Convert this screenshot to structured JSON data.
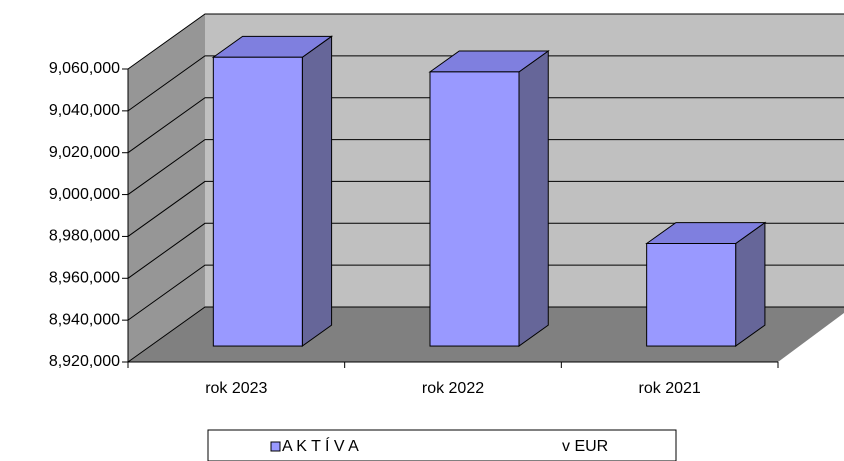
{
  "chart_data": {
    "type": "bar3d",
    "categories": [
      "rok 2023",
      "rok 2022",
      "rok 2021"
    ],
    "series": [
      {
        "name": "A K T Í V A",
        "color": "#9999ff",
        "values": [
          9058000,
          9051000,
          8969000
        ]
      }
    ],
    "annotation": "v EUR",
    "ylim": [
      8920000,
      9060000
    ],
    "yticks": [
      {
        "value": 8920000,
        "label": "8,920,000"
      },
      {
        "value": 8940000,
        "label": "8,940,000"
      },
      {
        "value": 8960000,
        "label": "8,960,000"
      },
      {
        "value": 8980000,
        "label": "8,980,000"
      },
      {
        "value": 9000000,
        "label": "9,000,000"
      },
      {
        "value": 9020000,
        "label": "9,020,000"
      },
      {
        "value": 9040000,
        "label": "9,040,000"
      },
      {
        "value": 9060000,
        "label": "9,060,000"
      }
    ],
    "grid": true
  }
}
